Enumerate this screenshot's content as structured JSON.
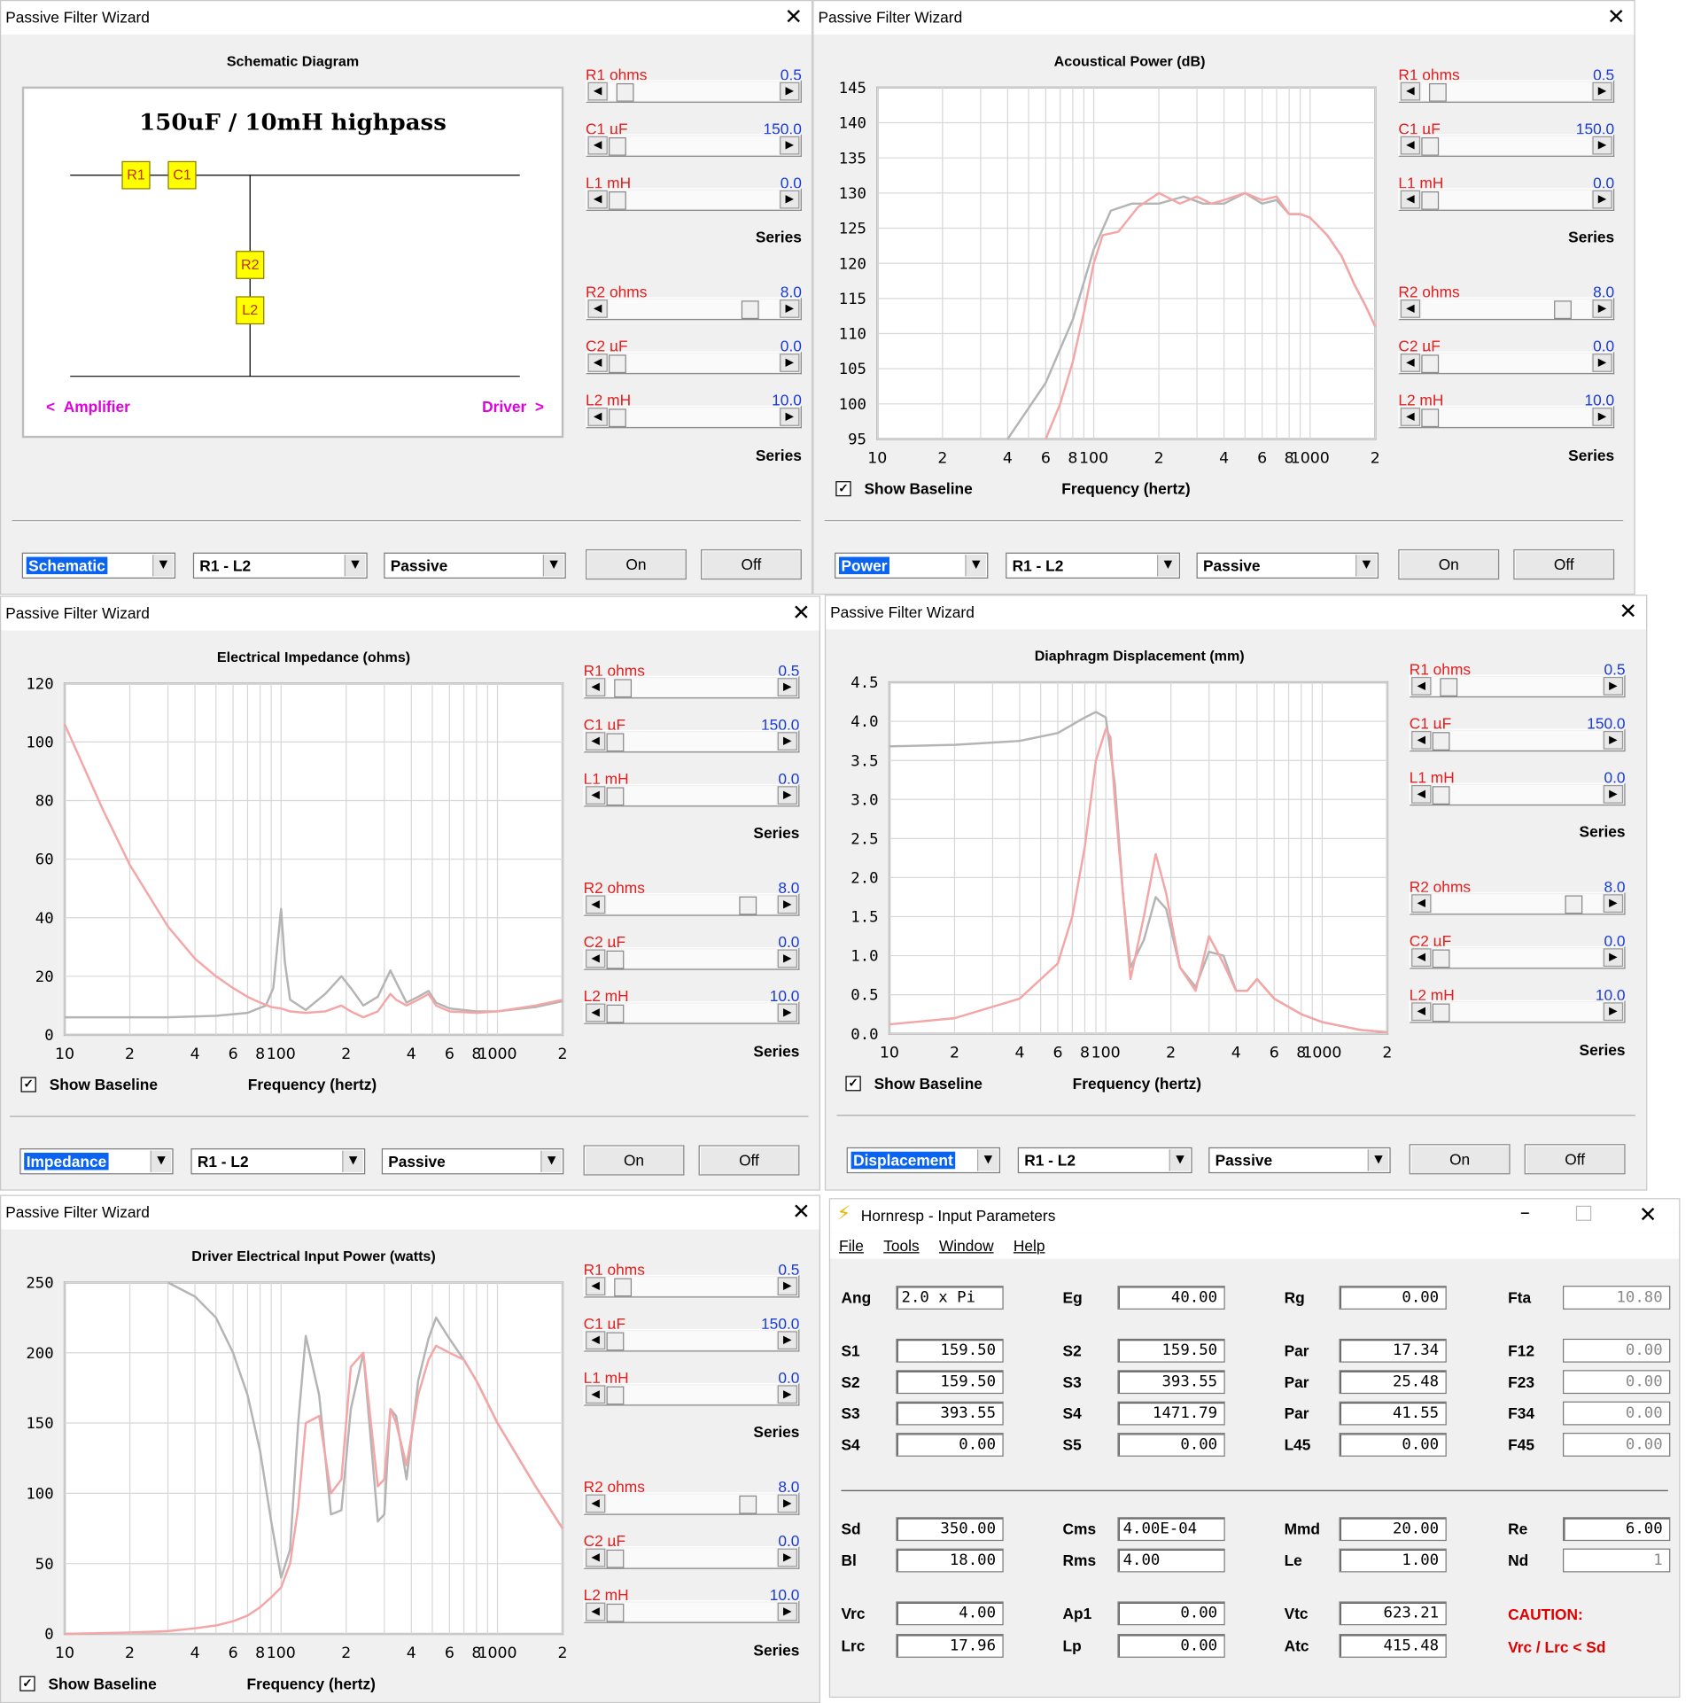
{
  "panels": [
    {
      "title": "Passive Filter Wizard",
      "plot_title": "Schematic Diagram",
      "schematic": {
        "heading": "150uF / 10mH highpass",
        "components": [
          "R1",
          "C1",
          "R2",
          "L2"
        ],
        "amp_label": "Amplifier",
        "drv_label": "Driver"
      },
      "mode": "Schematic",
      "range": "R1 - L2",
      "type": "Passive",
      "on": "On",
      "off": "Off"
    },
    {
      "title": "Passive Filter Wizard",
      "plot_title": "Acoustical Power (dB)",
      "show_baseline": "Show Baseline",
      "xaxis": "Frequency (hertz)",
      "mode": "Power",
      "range": "R1 - L2",
      "type": "Passive",
      "on": "On",
      "off": "Off"
    },
    {
      "title": "Passive Filter Wizard",
      "plot_title": "Electrical Impedance (ohms)",
      "show_baseline": "Show Baseline",
      "xaxis": "Frequency (hertz)",
      "mode": "Impedance",
      "range": "R1 - L2",
      "type": "Passive",
      "on": "On",
      "off": "Off"
    },
    {
      "title": "Passive Filter Wizard",
      "plot_title": "Diaphragm Displacement (mm)",
      "show_baseline": "Show Baseline",
      "xaxis": "Frequency (hertz)",
      "mode": "Displacement",
      "range": "R1 - L2",
      "type": "Passive",
      "on": "On",
      "off": "Off"
    },
    {
      "title": "Passive Filter Wizard",
      "plot_title": "Driver Electrical Input Power (watts)",
      "show_baseline": "Show Baseline",
      "xaxis": "Frequency (hertz)"
    }
  ],
  "sliders": [
    {
      "name": "R1  ohms",
      "value": "0.5",
      "pos": 0.05
    },
    {
      "name": "C1  µF",
      "value": "150.0",
      "pos": 0.0
    },
    {
      "name": "L1  mH",
      "value": "0.0",
      "pos": 0.0
    },
    {
      "name": "R2  ohms",
      "value": "8.0",
      "pos": 0.87
    },
    {
      "name": "C2  µF",
      "value": "0.0",
      "pos": 0.0
    },
    {
      "name": "L2  mH",
      "value": "10.0",
      "pos": 0.0
    }
  ],
  "series_label": "Series",
  "x_ticks": [
    "10",
    "2",
    "4",
    "6",
    "8",
    "100",
    "2",
    "4",
    "6",
    "8",
    "1000",
    "2"
  ],
  "colors": {
    "baseline": "#b4b4b4",
    "filtered": "#f4a6a6",
    "slider_name": "#e02020",
    "slider_value": "#1a3cd6"
  },
  "chart_data": [
    {
      "type": "line",
      "title": "Acoustical Power (dB)",
      "xlabel": "Frequency (hertz)",
      "xscale": "log",
      "xlim": [
        10,
        2000
      ],
      "ylim": [
        95,
        145
      ],
      "yticks": [
        "145",
        "140",
        "135",
        "130",
        "125",
        "120",
        "115",
        "110",
        "105",
        "100",
        "95"
      ],
      "grid": true,
      "series": [
        {
          "x": [
            40,
            60,
            80,
            100,
            120,
            150,
            200,
            260,
            320,
            400,
            500,
            600,
            700,
            800,
            900,
            1000,
            1200,
            1400,
            1600,
            1800,
            2000
          ],
          "values": [
            95,
            103,
            112,
            122,
            127.5,
            128.5,
            128.5,
            129.5,
            128.5,
            128.5,
            130,
            128.5,
            129,
            127,
            127,
            126.5,
            124,
            121,
            117,
            114,
            111
          ]
        },
        {
          "x": [
            60,
            70,
            80,
            90,
            100,
            110,
            130,
            160,
            200,
            250,
            300,
            350,
            400,
            500,
            600,
            700,
            800,
            900,
            1000,
            1200,
            1400,
            1600,
            1800,
            2000
          ],
          "values": [
            95,
            100,
            106,
            113,
            120,
            124,
            124.5,
            128,
            130,
            128.5,
            129.5,
            128.5,
            129,
            130,
            129,
            129.5,
            127,
            127,
            126.5,
            124,
            121,
            117,
            114,
            111
          ]
        }
      ]
    },
    {
      "type": "line",
      "title": "Electrical Impedance (ohms)",
      "xlabel": "Frequency (hertz)",
      "xscale": "log",
      "xlim": [
        10,
        2000
      ],
      "ylim": [
        0,
        120
      ],
      "yticks": [
        "120",
        "100",
        "80",
        "60",
        "40",
        "20",
        "0"
      ],
      "grid": true,
      "series": [
        {
          "x": [
            10,
            30,
            50,
            70,
            85,
            92,
            96,
            100,
            104,
            110,
            130,
            160,
            190,
            210,
            240,
            280,
            320,
            340,
            380,
            430,
            480,
            520,
            600,
            800,
            1000,
            1500,
            2000
          ],
          "values": [
            6,
            6,
            6.5,
            7.5,
            10,
            16,
            30,
            43,
            25,
            12,
            8.5,
            14,
            20,
            16,
            10,
            13,
            22,
            18,
            11,
            13,
            15,
            11,
            9,
            8,
            8,
            9.5,
            11.5
          ]
        },
        {
          "x": [
            10,
            15,
            20,
            30,
            40,
            50,
            60,
            70,
            80,
            90,
            100,
            110,
            130,
            160,
            190,
            210,
            240,
            280,
            320,
            340,
            380,
            430,
            480,
            520,
            600,
            800,
            1000,
            1500,
            2000
          ],
          "values": [
            106,
            77,
            58,
            37,
            26,
            20,
            16,
            13,
            11,
            9.5,
            9,
            8,
            7.5,
            8,
            10,
            8,
            6,
            8,
            14,
            12,
            10,
            12,
            14,
            10,
            8,
            7.5,
            8,
            10,
            12
          ]
        }
      ]
    },
    {
      "type": "line",
      "title": "Diaphragm Displacement (mm)",
      "xlabel": "Frequency (hertz)",
      "xscale": "log",
      "xlim": [
        10,
        2000
      ],
      "ylim": [
        0,
        4.5
      ],
      "yticks": [
        "4.5",
        "4.0",
        "3.5",
        "3.0",
        "2.5",
        "2.0",
        "1.5",
        "1.0",
        "0.5",
        "0.0"
      ],
      "grid": true,
      "series": [
        {
          "x": [
            10,
            20,
            40,
            60,
            80,
            90,
            100,
            110,
            120,
            130,
            150,
            170,
            190,
            220,
            260,
            300,
            350,
            400,
            450,
            500,
            600,
            800,
            1000,
            1500,
            2000
          ],
          "values": [
            3.68,
            3.7,
            3.75,
            3.85,
            4.05,
            4.12,
            4.05,
            3.2,
            1.8,
            0.85,
            1.2,
            1.75,
            1.6,
            0.85,
            0.6,
            1.05,
            1.0,
            0.55,
            0.55,
            0.7,
            0.45,
            0.25,
            0.15,
            0.05,
            0.02
          ]
        },
        {
          "x": [
            10,
            20,
            40,
            60,
            70,
            80,
            90,
            100,
            105,
            110,
            120,
            130,
            150,
            170,
            190,
            220,
            260,
            300,
            350,
            400,
            450,
            500,
            600,
            800,
            1000,
            1500,
            2000
          ],
          "values": [
            0.12,
            0.2,
            0.45,
            0.9,
            1.5,
            2.4,
            3.5,
            3.9,
            3.8,
            3.0,
            1.8,
            0.7,
            1.5,
            2.3,
            1.8,
            0.85,
            0.55,
            1.25,
            0.9,
            0.55,
            0.55,
            0.7,
            0.45,
            0.25,
            0.15,
            0.05,
            0.02
          ]
        }
      ]
    },
    {
      "type": "line",
      "title": "Driver Electrical Input Power (watts)",
      "xlabel": "Frequency (hertz)",
      "xscale": "log",
      "xlim": [
        10,
        2000
      ],
      "ylim": [
        0,
        250
      ],
      "yticks": [
        "250",
        "200",
        "150",
        "100",
        "50",
        "0"
      ],
      "grid": true,
      "series": [
        {
          "x": [
            30,
            40,
            50,
            60,
            70,
            80,
            90,
            100,
            110,
            120,
            130,
            150,
            170,
            190,
            210,
            240,
            280,
            300,
            320,
            340,
            380,
            430,
            480,
            520,
            600,
            700,
            800,
            1000,
            1500,
            2000
          ],
          "values": [
            250,
            240,
            225,
            200,
            170,
            130,
            80,
            40,
            60,
            150,
            212,
            170,
            85,
            88,
            160,
            200,
            80,
            85,
            160,
            155,
            110,
            180,
            210,
            225,
            210,
            195,
            180,
            150,
            105,
            75
          ]
        },
        {
          "x": [
            10,
            20,
            30,
            40,
            50,
            60,
            70,
            80,
            90,
            100,
            110,
            120,
            130,
            150,
            170,
            190,
            210,
            240,
            280,
            300,
            320,
            340,
            380,
            430,
            480,
            520,
            600,
            700,
            800,
            1000,
            1500,
            2000
          ],
          "values": [
            0,
            1,
            2,
            4,
            6,
            9,
            13,
            19,
            26,
            33,
            50,
            90,
            150,
            155,
            100,
            110,
            190,
            200,
            105,
            110,
            160,
            150,
            120,
            170,
            195,
            205,
            200,
            195,
            180,
            150,
            105,
            75
          ]
        }
      ]
    }
  ],
  "hornresp": {
    "title": "Hornresp - Input Parameters",
    "menu": [
      "File",
      "Tools",
      "Window",
      "Help"
    ],
    "rows1": [
      [
        {
          "l": "Ang",
          "v": "2.0 x Pi"
        },
        {
          "l": "Eg",
          "v": "40.00"
        },
        {
          "l": "Rg",
          "v": "0.00"
        },
        {
          "l": "Fta",
          "v": "10.80",
          "dis": true
        }
      ]
    ],
    "rows2": [
      [
        {
          "l": "S1",
          "v": "159.50"
        },
        {
          "l": "S2",
          "v": "159.50"
        },
        {
          "l": "Par",
          "v": "17.34"
        },
        {
          "l": "F12",
          "v": "0.00",
          "dis": true
        }
      ],
      [
        {
          "l": "S2",
          "v": "159.50"
        },
        {
          "l": "S3",
          "v": "393.55"
        },
        {
          "l": "Par",
          "v": "25.48"
        },
        {
          "l": "F23",
          "v": "0.00",
          "dis": true
        }
      ],
      [
        {
          "l": "S3",
          "v": "393.55"
        },
        {
          "l": "S4",
          "v": "1471.79"
        },
        {
          "l": "Par",
          "v": "41.55"
        },
        {
          "l": "F34",
          "v": "0.00",
          "dis": true
        }
      ],
      [
        {
          "l": "S4",
          "v": "0.00"
        },
        {
          "l": "S5",
          "v": "0.00"
        },
        {
          "l": "L45",
          "v": "0.00"
        },
        {
          "l": "F45",
          "v": "0.00",
          "dis": true
        }
      ]
    ],
    "rows3": [
      [
        {
          "l": "Sd",
          "v": "350.00"
        },
        {
          "l": "Cms",
          "v": "4.00E-04"
        },
        {
          "l": "Mmd",
          "v": "20.00"
        },
        {
          "l": "Re",
          "v": "6.00"
        }
      ],
      [
        {
          "l": "Bl",
          "v": "18.00"
        },
        {
          "l": "Rms",
          "v": "4.00"
        },
        {
          "l": "Le",
          "v": "1.00"
        },
        {
          "l": "Nd",
          "v": "1",
          "dis": true
        }
      ]
    ],
    "rows4": [
      [
        {
          "l": "Vrc",
          "v": "4.00"
        },
        {
          "l": "Ap1",
          "v": "0.00"
        },
        {
          "l": "Vtc",
          "v": "623.21"
        }
      ],
      [
        {
          "l": "Lrc",
          "v": "17.96"
        },
        {
          "l": "Lp",
          "v": "0.00"
        },
        {
          "l": "Atc",
          "v": "415.48"
        }
      ]
    ],
    "caution": "CAUTION:",
    "caution_msg": "Vrc / Lrc < Sd"
  }
}
